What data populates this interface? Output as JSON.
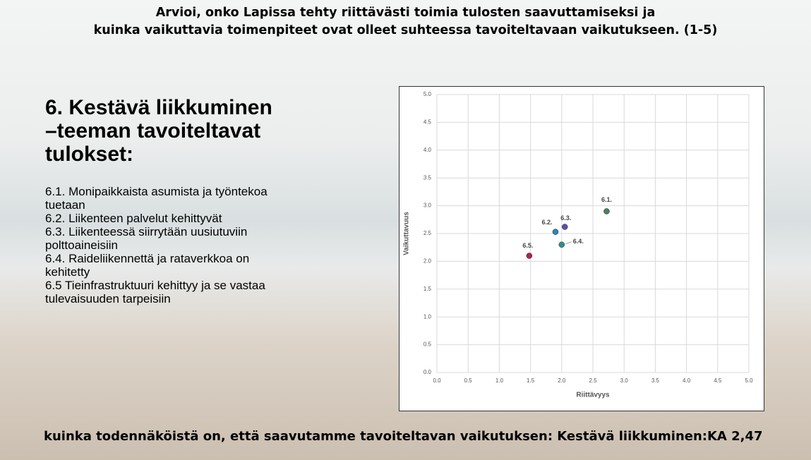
{
  "header": {
    "lines": [
      "Arvioi, onko Lapissa tehty riittävästi toimia tulosten saavuttamiseksi ja",
      "kuinka vaikuttavia toimenpiteet ovat olleet suhteessa tavoiteltavaan vaikutukseen. (1-5)"
    ]
  },
  "section": {
    "title_lines": [
      "6. Kestävä liikkuminen",
      "–teeman tavoiteltavat",
      "tulokset:"
    ],
    "items": [
      "6.1. Monipaikkaista asumista ja työntekoa tuetaan",
      "6.2. Liikenteen palvelut kehittyvät",
      "6.3. Liikenteessä siirrytään uusiutuviin polttoaineisiin",
      "6.4. Raideliikennettä ja rataverkkoa on kehitetty",
      "6.5 Tieinfrastruktuuri kehittyy ja se vastaa tulevaisuuden tarpeisiin"
    ]
  },
  "chart_data": {
    "type": "scatter",
    "x_label": "Riittävyys",
    "y_label": "Vaikuttavuus",
    "points": [
      {
        "label": "6.1.",
        "x": 2.72,
        "y": 2.9,
        "color": "#4e7d64"
      },
      {
        "label": "6.2.",
        "x": 1.9,
        "y": 2.53,
        "color": "#2a86b8"
      },
      {
        "label": "6.3.",
        "x": 2.05,
        "y": 2.62,
        "color": "#5a4fb0"
      },
      {
        "label": "6.4.",
        "x": 2.0,
        "y": 2.3,
        "color": "#2e8f8a"
      },
      {
        "label": "6.5.",
        "x": 1.48,
        "y": 2.1,
        "color": "#a8274a"
      }
    ],
    "xlim": [
      0,
      5
    ],
    "ylim": [
      0,
      5
    ],
    "xticks": [
      {
        "value": 0,
        "label": "0.0"
      },
      {
        "value": 0.5,
        "label": "0.5"
      },
      {
        "value": 1,
        "label": "1.0"
      },
      {
        "value": 1.5,
        "label": "1.5"
      },
      {
        "value": 2,
        "label": "2.0"
      },
      {
        "value": 2.5,
        "label": "2.5"
      },
      {
        "value": 3,
        "label": "3.0"
      },
      {
        "value": 3.5,
        "label": "3.5"
      },
      {
        "value": 4,
        "label": "4.0"
      },
      {
        "value": 4.5,
        "label": "4.5"
      },
      {
        "value": 5,
        "label": "5.0"
      }
    ],
    "yticks": [
      {
        "value": 0,
        "label": "0.0"
      },
      {
        "value": 0.5,
        "label": "0.5"
      },
      {
        "value": 1,
        "label": "1.0"
      },
      {
        "value": 1.5,
        "label": "1.5"
      },
      {
        "value": 2,
        "label": "2.0"
      },
      {
        "value": 2.5,
        "label": "2.5"
      },
      {
        "value": 3,
        "label": "3.0"
      },
      {
        "value": 3.5,
        "label": "3.5"
      },
      {
        "value": 4,
        "label": "4.0"
      },
      {
        "value": 4.5,
        "label": "4.5"
      },
      {
        "value": 5,
        "label": "5.0"
      }
    ],
    "grid": true
  },
  "footer": "kuinka todennäköistä on, että saavutamme tavoiteltavan vaikutuksen: Kestävä liikkuminen:KA 2,47"
}
